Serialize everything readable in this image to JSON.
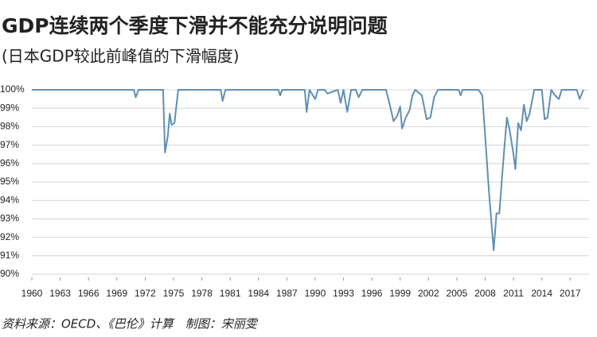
{
  "chart_data": {
    "type": "line",
    "title": "GDP连续两个季度下滑并不能充分说明问题",
    "subtitle": "(日本GDP较此前峰值的下滑幅度)",
    "source": "资料来源：OECD、《巴伦》计算　制图：宋丽雯",
    "x": [
      1960,
      1970.8,
      1971.0,
      1971.3,
      1973.9,
      1974.1,
      1974.4,
      1974.6,
      1974.8,
      1975.1,
      1975.5,
      1980.0,
      1980.2,
      1980.5,
      1986.1,
      1986.3,
      1986.5,
      1988.9,
      1989.1,
      1989.4,
      1990.0,
      1990.3,
      1991.0,
      1991.3,
      1992.4,
      1992.7,
      1993.0,
      1993.4,
      1993.8,
      1994.3,
      1994.6,
      1995.0,
      1997.5,
      1997.9,
      1998.3,
      1998.7,
      1999.0,
      1999.2,
      1999.6,
      2000.0,
      2000.3,
      2000.6,
      2001.3,
      2001.8,
      2002.2,
      2002.6,
      2003.0,
      2005.2,
      2005.4,
      2005.6,
      2007.3,
      2007.7,
      2008.0,
      2008.4,
      2008.9,
      2009.2,
      2009.5,
      2009.9,
      2010.3,
      2010.6,
      2011.0,
      2011.2,
      2011.5,
      2011.8,
      2012.1,
      2012.4,
      2012.7,
      2013.2,
      2014.0,
      2014.3,
      2014.6,
      2015.0,
      2015.4,
      2015.8,
      2016.1,
      2017.7,
      2018.0,
      2018.4
    ],
    "series": [
      {
        "color": "#5f8fb5",
        "values": [
          100,
          100,
          99.6,
          100,
          100,
          96.6,
          97.5,
          98.7,
          98.1,
          98.2,
          100,
          100,
          99.4,
          100,
          100,
          99.7,
          100,
          100,
          98.8,
          100,
          99.5,
          100,
          100,
          99.8,
          100,
          99.3,
          100,
          98.8,
          100,
          100,
          99.6,
          100,
          100,
          99.2,
          98.3,
          98.6,
          99.1,
          97.9,
          98.5,
          98.9,
          99.7,
          100,
          99.7,
          98.4,
          98.5,
          99.6,
          100,
          100,
          99.7,
          100,
          100,
          99.7,
          97.5,
          94.5,
          91.3,
          93.3,
          93.3,
          96.0,
          98.5,
          97.8,
          96.5,
          95.7,
          98.2,
          97.8,
          99.2,
          98.3,
          98.7,
          100,
          100,
          98.4,
          98.5,
          100,
          99.7,
          99.5,
          100,
          100,
          99.5,
          100
        ]
      }
    ],
    "xlim": [
      1960,
      2019
    ],
    "xticks": [
      1960,
      1963,
      1966,
      1969,
      1972,
      1975,
      1978,
      1981,
      1984,
      1987,
      1990,
      1993,
      1996,
      1999,
      2002,
      2005,
      2008,
      2011,
      2014,
      2017
    ],
    "ylim": [
      90,
      100.2
    ],
    "yticks": [
      {
        "value": 100,
        "label": "100%"
      },
      {
        "value": 99,
        "label": "99%"
      },
      {
        "value": 98,
        "label": "98%"
      },
      {
        "value": 97,
        "label": "97%"
      },
      {
        "value": 96,
        "label": "96%"
      },
      {
        "value": 95,
        "label": "95%"
      },
      {
        "value": 94,
        "label": "94%"
      },
      {
        "value": 93,
        "label": "93%"
      },
      {
        "value": 92,
        "label": "92%"
      },
      {
        "value": 91,
        "label": "91%"
      },
      {
        "value": 90,
        "label": "90%"
      }
    ],
    "grid": true
  }
}
